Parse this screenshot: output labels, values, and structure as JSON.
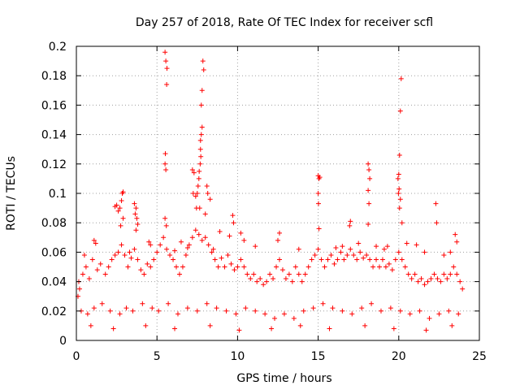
{
  "chart_data": {
    "type": "scatter",
    "title": "Day 257 of 2018, Rate Of TEC Index for receiver scfl",
    "xlabel": "GPS time / hours",
    "ylabel": "ROTI / TECUs",
    "xlim": [
      0,
      25
    ],
    "ylim": [
      0,
      0.2
    ],
    "x_ticks": [
      "0",
      "5",
      "10",
      "15",
      "20",
      "25"
    ],
    "y_ticks": [
      "0",
      "0.02",
      "0.04",
      "0.06",
      "0.08",
      "0.1",
      "0.12",
      "0.14",
      "0.16",
      "0.18",
      "0.2"
    ],
    "grid": true,
    "marker": "+",
    "series_color": "#ff0000",
    "points": [
      [
        5.5,
        0.196
      ],
      [
        5.55,
        0.19
      ],
      [
        5.62,
        0.185
      ],
      [
        5.6,
        0.174
      ],
      [
        5.52,
        0.127
      ],
      [
        5.5,
        0.12
      ],
      [
        5.55,
        0.116
      ],
      [
        5.5,
        0.083
      ],
      [
        5.58,
        0.078
      ],
      [
        7.85,
        0.19
      ],
      [
        7.9,
        0.184
      ],
      [
        7.8,
        0.17
      ],
      [
        7.75,
        0.16
      ],
      [
        7.8,
        0.145
      ],
      [
        7.75,
        0.14
      ],
      [
        7.7,
        0.136
      ],
      [
        7.7,
        0.13
      ],
      [
        7.72,
        0.125
      ],
      [
        7.68,
        0.12
      ],
      [
        7.62,
        0.115
      ],
      [
        7.6,
        0.11
      ],
      [
        7.55,
        0.105
      ],
      [
        7.5,
        0.1
      ],
      [
        7.4,
        0.098
      ],
      [
        7.2,
        0.116
      ],
      [
        7.3,
        0.114
      ],
      [
        7.25,
        0.1
      ],
      [
        8.1,
        0.105
      ],
      [
        8.15,
        0.1
      ],
      [
        8.3,
        0.096
      ],
      [
        8.0,
        0.086
      ],
      [
        7.65,
        0.09
      ],
      [
        7.45,
        0.09
      ],
      [
        20.15,
        0.178
      ],
      [
        20.1,
        0.156
      ],
      [
        20.05,
        0.126
      ],
      [
        20.0,
        0.113
      ],
      [
        19.95,
        0.11
      ],
      [
        20.02,
        0.103
      ],
      [
        19.98,
        0.1
      ],
      [
        20.1,
        0.096
      ],
      [
        20.05,
        0.09
      ],
      [
        20.2,
        0.08
      ],
      [
        15.0,
        0.112
      ],
      [
        15.05,
        0.11
      ],
      [
        15.1,
        0.111
      ],
      [
        15.0,
        0.1
      ],
      [
        15.02,
        0.093
      ],
      [
        15.05,
        0.076
      ],
      [
        18.1,
        0.12
      ],
      [
        18.15,
        0.116
      ],
      [
        18.2,
        0.11
      ],
      [
        18.1,
        0.102
      ],
      [
        18.15,
        0.093
      ],
      [
        18.1,
        0.079
      ],
      [
        2.9,
        0.101
      ],
      [
        2.85,
        0.1
      ],
      [
        2.8,
        0.095
      ],
      [
        2.7,
        0.09
      ],
      [
        2.5,
        0.092
      ],
      [
        2.4,
        0.091
      ],
      [
        2.6,
        0.088
      ],
      [
        2.9,
        0.083
      ],
      [
        2.75,
        0.078
      ],
      [
        3.6,
        0.093
      ],
      [
        3.7,
        0.09
      ],
      [
        3.65,
        0.086
      ],
      [
        3.75,
        0.083
      ],
      [
        3.8,
        0.079
      ],
      [
        3.7,
        0.075
      ],
      [
        22.3,
        0.093
      ],
      [
        22.35,
        0.08
      ],
      [
        23.5,
        0.072
      ],
      [
        23.6,
        0.067
      ],
      [
        21.1,
        0.065
      ],
      [
        20.5,
        0.066
      ],
      [
        19.3,
        0.064
      ],
      [
        17.0,
        0.081
      ],
      [
        16.95,
        0.078
      ],
      [
        12.6,
        0.073
      ],
      [
        12.5,
        0.068
      ],
      [
        10.2,
        0.073
      ],
      [
        10.4,
        0.068
      ],
      [
        9.7,
        0.085
      ],
      [
        9.75,
        0.08
      ],
      [
        9.5,
        0.071
      ],
      [
        8.9,
        0.074
      ],
      [
        1.1,
        0.068
      ],
      [
        1.2,
        0.066
      ],
      [
        4.5,
        0.067
      ],
      [
        4.6,
        0.065
      ],
      [
        6.5,
        0.067
      ],
      [
        6.9,
        0.063
      ],
      [
        11.1,
        0.064
      ],
      [
        13.8,
        0.062
      ],
      [
        16.1,
        0.063
      ],
      [
        16.5,
        0.064
      ],
      [
        17.5,
        0.066
      ],
      [
        18.6,
        0.064
      ],
      [
        19.1,
        0.062
      ],
      [
        21.6,
        0.06
      ],
      [
        22.8,
        0.058
      ],
      [
        23.2,
        0.06
      ],
      [
        0.5,
        0.058
      ],
      [
        3.3,
        0.06
      ],
      [
        6.1,
        0.061
      ],
      [
        8.5,
        0.062
      ],
      [
        0.1,
        0.03
      ],
      [
        0.15,
        0.04
      ],
      [
        0.2,
        0.035
      ],
      [
        0.4,
        0.045
      ],
      [
        0.6,
        0.05
      ],
      [
        0.8,
        0.042
      ],
      [
        1.0,
        0.055
      ],
      [
        1.3,
        0.048
      ],
      [
        1.5,
        0.052
      ],
      [
        1.8,
        0.045
      ],
      [
        2.0,
        0.05
      ],
      [
        2.2,
        0.055
      ],
      [
        2.4,
        0.058
      ],
      [
        2.6,
        0.06
      ],
      [
        2.8,
        0.065
      ],
      [
        3.0,
        0.058
      ],
      [
        3.2,
        0.05
      ],
      [
        3.4,
        0.056
      ],
      [
        3.6,
        0.062
      ],
      [
        3.8,
        0.055
      ],
      [
        4.0,
        0.048
      ],
      [
        4.2,
        0.045
      ],
      [
        4.4,
        0.052
      ],
      [
        4.6,
        0.05
      ],
      [
        4.8,
        0.055
      ],
      [
        5.0,
        0.06
      ],
      [
        5.2,
        0.065
      ],
      [
        5.4,
        0.07
      ],
      [
        5.6,
        0.062
      ],
      [
        5.8,
        0.058
      ],
      [
        6.0,
        0.055
      ],
      [
        6.2,
        0.05
      ],
      [
        6.4,
        0.045
      ],
      [
        6.6,
        0.05
      ],
      [
        6.8,
        0.058
      ],
      [
        7.0,
        0.065
      ],
      [
        7.2,
        0.07
      ],
      [
        7.4,
        0.075
      ],
      [
        7.6,
        0.072
      ],
      [
        7.8,
        0.068
      ],
      [
        8.0,
        0.07
      ],
      [
        8.2,
        0.065
      ],
      [
        8.4,
        0.06
      ],
      [
        8.6,
        0.055
      ],
      [
        8.8,
        0.05
      ],
      [
        9.0,
        0.056
      ],
      [
        9.2,
        0.05
      ],
      [
        9.4,
        0.058
      ],
      [
        9.6,
        0.052
      ],
      [
        9.8,
        0.048
      ],
      [
        10.0,
        0.05
      ],
      [
        10.2,
        0.055
      ],
      [
        10.4,
        0.05
      ],
      [
        10.6,
        0.045
      ],
      [
        10.8,
        0.042
      ],
      [
        11.0,
        0.045
      ],
      [
        11.2,
        0.04
      ],
      [
        11.4,
        0.042
      ],
      [
        11.6,
        0.038
      ],
      [
        11.8,
        0.04
      ],
      [
        12.0,
        0.045
      ],
      [
        12.2,
        0.042
      ],
      [
        12.4,
        0.05
      ],
      [
        12.6,
        0.055
      ],
      [
        12.8,
        0.048
      ],
      [
        13.0,
        0.042
      ],
      [
        13.2,
        0.045
      ],
      [
        13.4,
        0.04
      ],
      [
        13.6,
        0.05
      ],
      [
        13.8,
        0.045
      ],
      [
        14.0,
        0.04
      ],
      [
        14.2,
        0.045
      ],
      [
        14.4,
        0.05
      ],
      [
        14.6,
        0.055
      ],
      [
        14.8,
        0.058
      ],
      [
        15.0,
        0.062
      ],
      [
        15.2,
        0.055
      ],
      [
        15.4,
        0.05
      ],
      [
        15.6,
        0.055
      ],
      [
        15.8,
        0.058
      ],
      [
        16.0,
        0.052
      ],
      [
        16.2,
        0.055
      ],
      [
        16.4,
        0.06
      ],
      [
        16.6,
        0.055
      ],
      [
        16.8,
        0.058
      ],
      [
        17.0,
        0.062
      ],
      [
        17.2,
        0.058
      ],
      [
        17.4,
        0.055
      ],
      [
        17.6,
        0.06
      ],
      [
        17.8,
        0.056
      ],
      [
        18.0,
        0.058
      ],
      [
        18.2,
        0.055
      ],
      [
        18.4,
        0.05
      ],
      [
        18.6,
        0.055
      ],
      [
        18.8,
        0.05
      ],
      [
        19.0,
        0.055
      ],
      [
        19.2,
        0.05
      ],
      [
        19.4,
        0.052
      ],
      [
        19.6,
        0.048
      ],
      [
        19.8,
        0.055
      ],
      [
        20.0,
        0.06
      ],
      [
        20.2,
        0.055
      ],
      [
        20.4,
        0.05
      ],
      [
        20.6,
        0.045
      ],
      [
        20.8,
        0.042
      ],
      [
        21.0,
        0.045
      ],
      [
        21.2,
        0.04
      ],
      [
        21.4,
        0.042
      ],
      [
        21.6,
        0.038
      ],
      [
        21.8,
        0.04
      ],
      [
        22.0,
        0.042
      ],
      [
        22.2,
        0.045
      ],
      [
        22.4,
        0.042
      ],
      [
        22.6,
        0.04
      ],
      [
        22.8,
        0.045
      ],
      [
        23.0,
        0.042
      ],
      [
        23.2,
        0.045
      ],
      [
        23.4,
        0.05
      ],
      [
        23.6,
        0.045
      ],
      [
        23.8,
        0.04
      ],
      [
        23.95,
        0.035
      ],
      [
        0.3,
        0.02
      ],
      [
        0.7,
        0.018
      ],
      [
        1.1,
        0.022
      ],
      [
        1.6,
        0.025
      ],
      [
        2.1,
        0.02
      ],
      [
        2.7,
        0.018
      ],
      [
        3.1,
        0.022
      ],
      [
        3.5,
        0.02
      ],
      [
        4.1,
        0.025
      ],
      [
        4.7,
        0.022
      ],
      [
        5.1,
        0.02
      ],
      [
        5.7,
        0.025
      ],
      [
        6.3,
        0.018
      ],
      [
        6.9,
        0.022
      ],
      [
        7.5,
        0.02
      ],
      [
        8.1,
        0.025
      ],
      [
        8.7,
        0.022
      ],
      [
        9.3,
        0.02
      ],
      [
        9.9,
        0.018
      ],
      [
        10.5,
        0.022
      ],
      [
        11.1,
        0.02
      ],
      [
        11.7,
        0.018
      ],
      [
        12.3,
        0.015
      ],
      [
        12.9,
        0.018
      ],
      [
        13.5,
        0.015
      ],
      [
        14.1,
        0.02
      ],
      [
        14.7,
        0.022
      ],
      [
        15.3,
        0.025
      ],
      [
        15.9,
        0.022
      ],
      [
        16.5,
        0.02
      ],
      [
        17.1,
        0.018
      ],
      [
        17.7,
        0.022
      ],
      [
        18.3,
        0.025
      ],
      [
        18.9,
        0.02
      ],
      [
        19.5,
        0.022
      ],
      [
        20.1,
        0.02
      ],
      [
        20.7,
        0.018
      ],
      [
        21.3,
        0.02
      ],
      [
        21.9,
        0.015
      ],
      [
        22.5,
        0.018
      ],
      [
        23.1,
        0.02
      ],
      [
        23.7,
        0.018
      ],
      [
        0.9,
        0.01
      ],
      [
        2.3,
        0.008
      ],
      [
        4.3,
        0.01
      ],
      [
        6.1,
        0.008
      ],
      [
        8.3,
        0.01
      ],
      [
        10.1,
        0.007
      ],
      [
        12.1,
        0.008
      ],
      [
        13.9,
        0.01
      ],
      [
        15.7,
        0.008
      ],
      [
        17.9,
        0.01
      ],
      [
        19.7,
        0.008
      ],
      [
        21.7,
        0.007
      ],
      [
        23.3,
        0.01
      ]
    ]
  }
}
